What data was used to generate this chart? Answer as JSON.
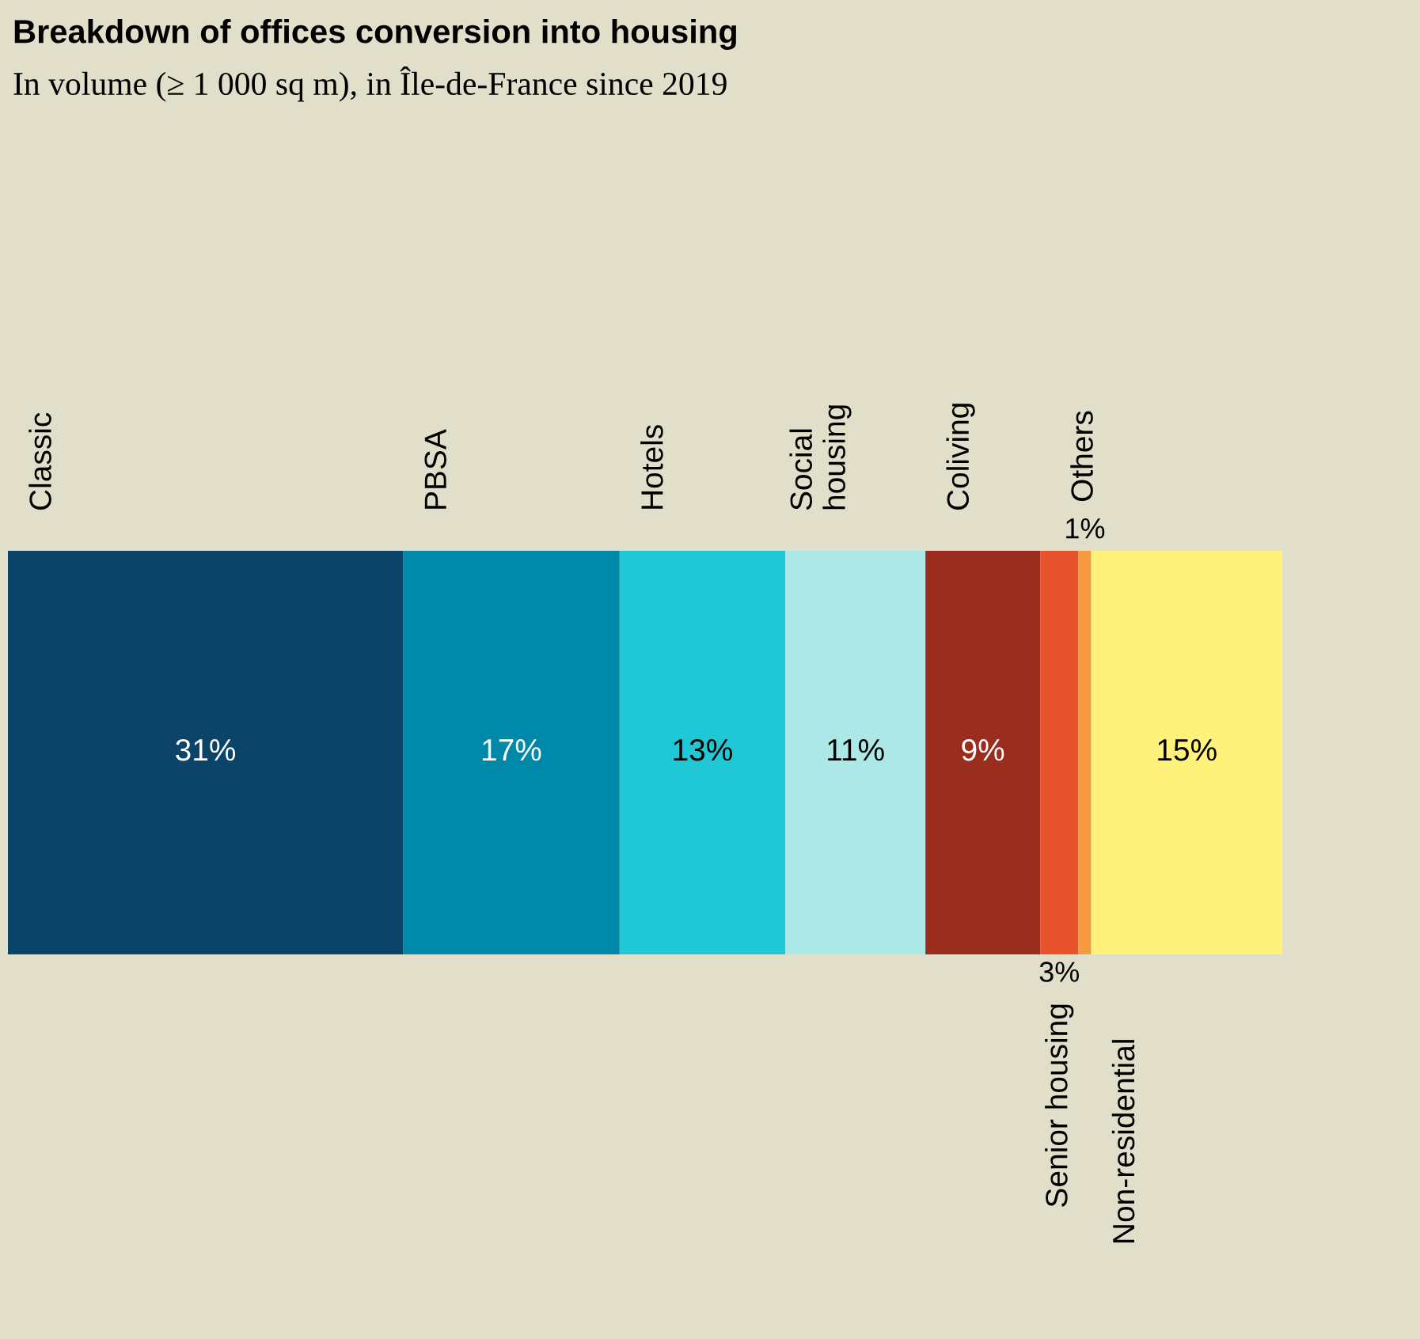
{
  "chart_data": {
    "type": "bar",
    "orientation": "horizontal",
    "stacked": true,
    "title": "Breakdown of offices conversion into housing",
    "subtitle": "In volume (≥ 1 000 sq m), in Île-de-France since 2019",
    "categories": [
      null
    ],
    "series": [
      {
        "name": "Classic",
        "color": "#0b4468",
        "values": [
          31
        ],
        "value_labels": [
          "31%"
        ]
      },
      {
        "name": "PBSA",
        "color": "#0088a8",
        "values": [
          17
        ],
        "value_labels": [
          "17%"
        ]
      },
      {
        "name": "Hotels",
        "color": "#1fc8d4",
        "values": [
          13
        ],
        "value_labels": [
          "13%"
        ]
      },
      {
        "name": "Social\nhousing",
        "color": "#ade8e8",
        "values": [
          11
        ],
        "value_labels": [
          "11%"
        ]
      },
      {
        "name": "Coliving",
        "color": "#9a2d1e",
        "values": [
          9
        ],
        "value_labels": [
          "9%"
        ]
      },
      {
        "name": "Senior housing",
        "color": "#e8532e",
        "values": [
          3
        ],
        "value_labels": [
          "3%"
        ]
      },
      {
        "name": "Others",
        "color": "#f59a3e",
        "values": [
          1
        ],
        "value_labels": [
          "1%"
        ]
      },
      {
        "name": "Non-residential",
        "color": "#fef27a",
        "values": [
          15
        ],
        "value_labels": [
          "15%"
        ]
      }
    ],
    "legend": false,
    "tick_labels": false
  }
}
